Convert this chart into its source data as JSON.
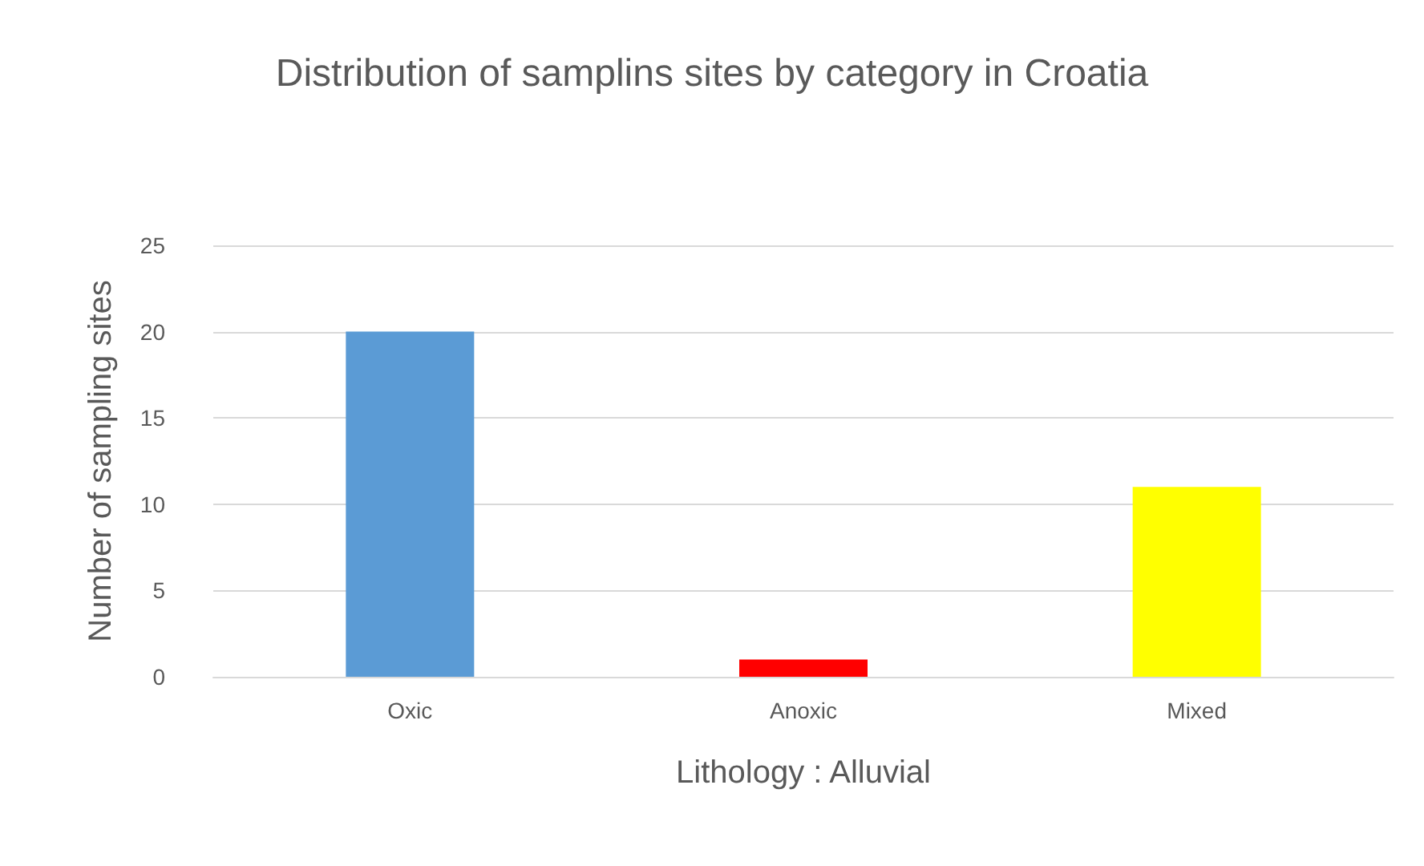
{
  "chart_data": {
    "type": "bar",
    "title": "Distribution of samplins sites by category in Croatia",
    "xlabel": "Lithology : Alluvial",
    "ylabel": "Number of sampling sites",
    "categories": [
      "Oxic",
      "Anoxic",
      "Mixed"
    ],
    "values": [
      20,
      1,
      11
    ],
    "colors": [
      "#5b9bd5",
      "#ff0000",
      "#ffff00"
    ],
    "ylim": [
      0,
      25
    ],
    "yticks": [
      0,
      5,
      10,
      15,
      20,
      25
    ],
    "grid": "y"
  }
}
